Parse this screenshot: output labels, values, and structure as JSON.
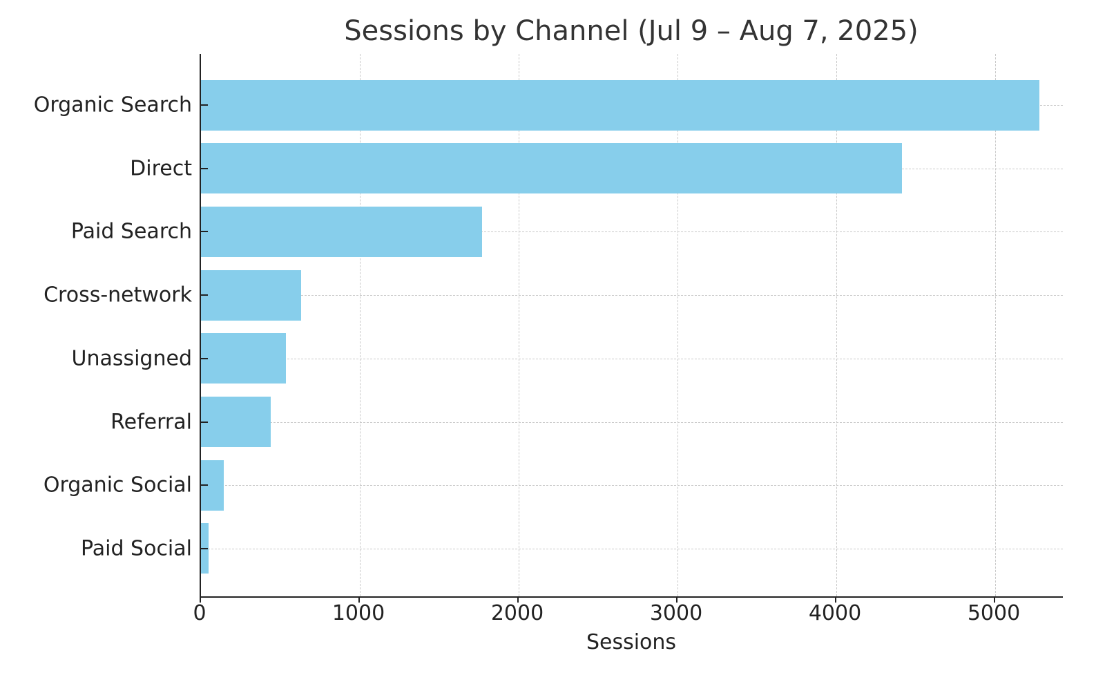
{
  "chart_data": {
    "type": "bar",
    "orientation": "horizontal",
    "title": "Sessions by Channel (Jul 9 – Aug 7, 2025)",
    "xlabel": "Sessions",
    "ylabel": "",
    "categories": [
      "Organic Search",
      "Direct",
      "Paid Search",
      "Cross-network",
      "Unassigned",
      "Referral",
      "Organic Social",
      "Paid Social"
    ],
    "values": [
      5278,
      4413,
      1770,
      630,
      535,
      439,
      143,
      48
    ],
    "xlim": [
      0,
      5550
    ],
    "xticks": [
      0,
      1000,
      2000,
      3000,
      4000,
      5000
    ],
    "xtick_labels": [
      "0",
      "1000",
      "2000",
      "3000",
      "4000",
      "5000"
    ],
    "grid": true,
    "bar_color": "#87ceeb",
    "legend": null
  }
}
